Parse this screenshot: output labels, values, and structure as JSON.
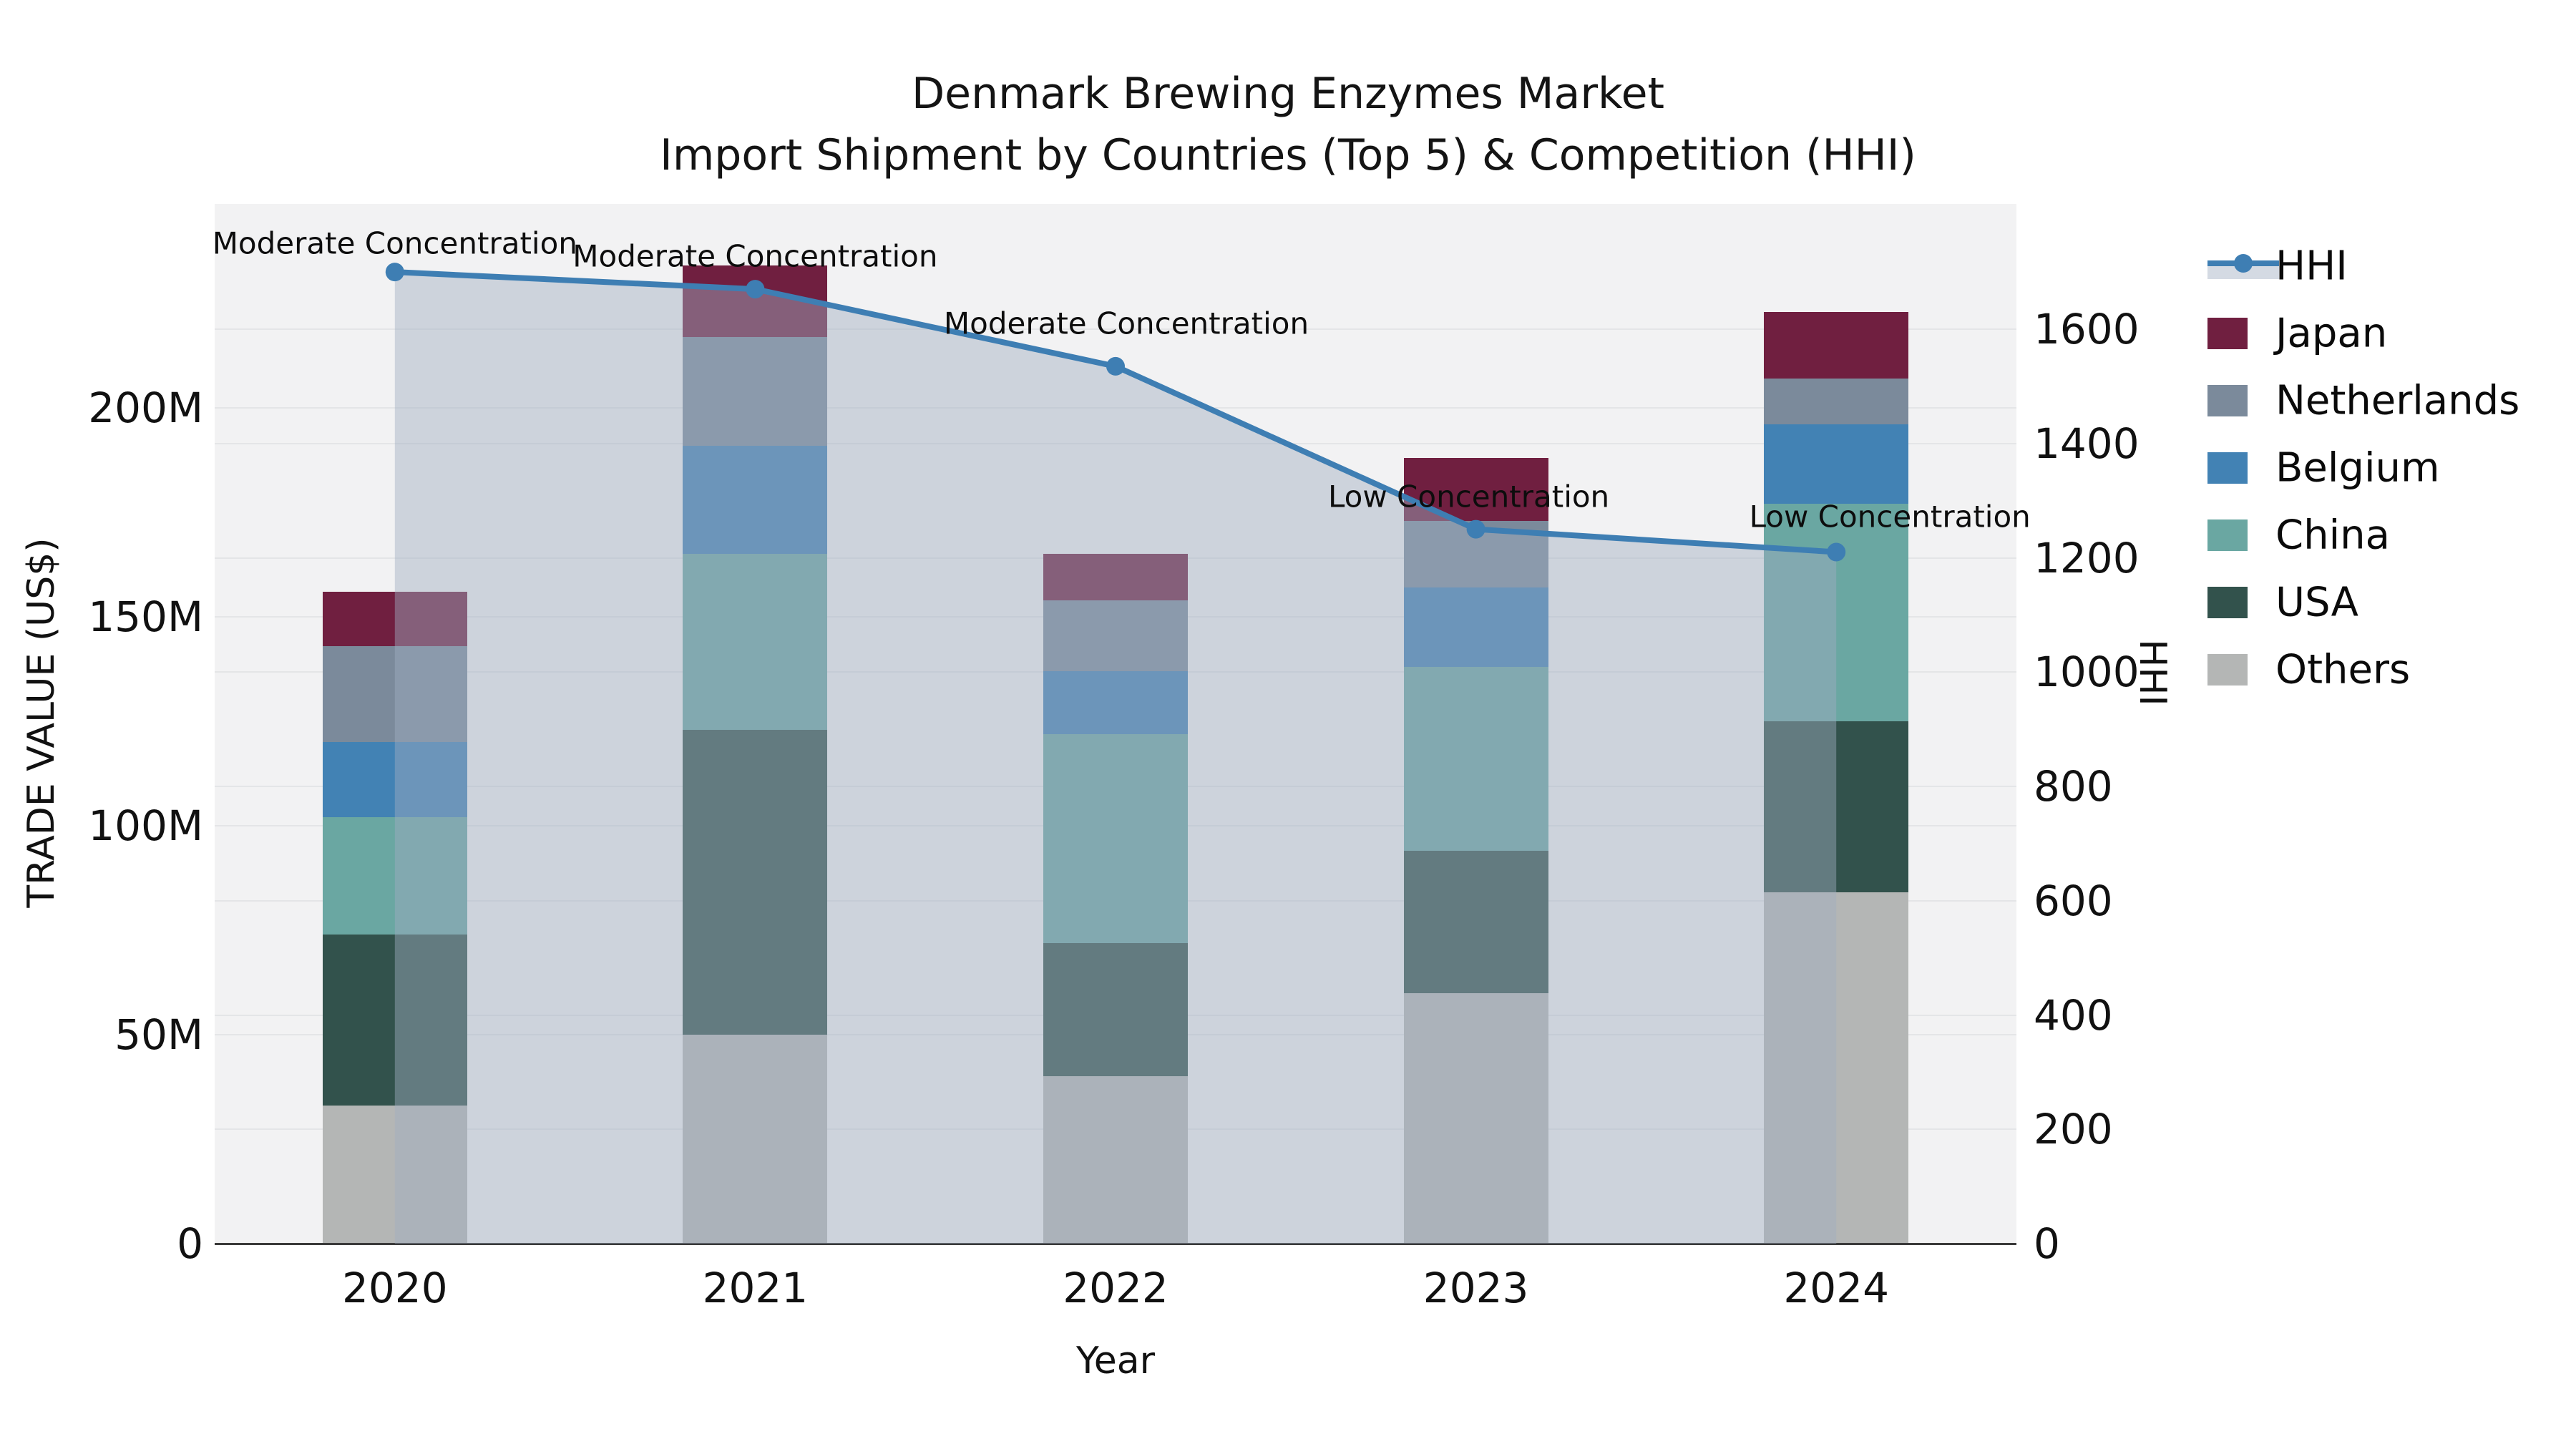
{
  "title": {
    "line1": "Denmark Brewing Enzymes Market",
    "line2": "Import Shipment by Countries (Top 5) & Competition (HHI)"
  },
  "axes": {
    "left_label": "TRADE VALUE (US$)",
    "right_label": "HHI",
    "x_label": "Year",
    "left_ticks": [
      {
        "label": "0",
        "value": 0
      },
      {
        "label": "50M",
        "value": 50
      },
      {
        "label": "100M",
        "value": 100
      },
      {
        "label": "150M",
        "value": 150
      },
      {
        "label": "200M",
        "value": 200
      }
    ],
    "right_ticks": [
      {
        "label": "0",
        "value": 0
      },
      {
        "label": "200",
        "value": 200
      },
      {
        "label": "400",
        "value": 400
      },
      {
        "label": "600",
        "value": 600
      },
      {
        "label": "800",
        "value": 800
      },
      {
        "label": "1000",
        "value": 1000
      },
      {
        "label": "1200",
        "value": 1200
      },
      {
        "label": "1400",
        "value": 1400
      },
      {
        "label": "1600",
        "value": 1600
      }
    ]
  },
  "legend": {
    "items": [
      {
        "label": "HHI",
        "type": "line",
        "color": "#3e7eb3"
      },
      {
        "label": "Japan",
        "type": "swatch",
        "color": "#701f40"
      },
      {
        "label": "Netherlands",
        "type": "swatch",
        "color": "#7b8a9b"
      },
      {
        "label": "Belgium",
        "type": "swatch",
        "color": "#4282b4"
      },
      {
        "label": "China",
        "type": "swatch",
        "color": "#6aa7a2"
      },
      {
        "label": "USA",
        "type": "swatch",
        "color": "#32524c"
      },
      {
        "label": "Others",
        "type": "swatch",
        "color": "#b4b6b5"
      }
    ]
  },
  "chart_data": {
    "type": "combo_stacked_bar_line",
    "title": "Denmark Brewing Enzymes Market — Import Shipment by Countries (Top 5) & Competition (HHI)",
    "categories": [
      "2020",
      "2021",
      "2022",
      "2023",
      "2024"
    ],
    "unit": "Trade value, millions US$",
    "stack_order_bottom_to_top": [
      "Others",
      "USA",
      "China",
      "Belgium",
      "Netherlands",
      "Japan"
    ],
    "series": [
      {
        "name": "Others",
        "color": "#b4b6b5",
        "values": [
          33,
          50,
          40,
          60,
          84
        ]
      },
      {
        "name": "USA",
        "color": "#32524c",
        "values": [
          41,
          73,
          32,
          34,
          41
        ]
      },
      {
        "name": "China",
        "color": "#6aa7a2",
        "values": [
          28,
          42,
          50,
          44,
          52
        ]
      },
      {
        "name": "Belgium",
        "color": "#4282b4",
        "values": [
          18,
          26,
          15,
          19,
          19
        ]
      },
      {
        "name": "Netherlands",
        "color": "#7b8a9b",
        "values": [
          23,
          26,
          17,
          16,
          11
        ]
      },
      {
        "name": "Japan",
        "color": "#701f40",
        "values": [
          13,
          17,
          11,
          15,
          16
        ]
      }
    ],
    "bar_totals": [
      156,
      234,
      165,
      188,
      223
    ],
    "hhi": {
      "name": "HHI",
      "values": [
        1700,
        1670,
        1535,
        1250,
        1210
      ],
      "line_color": "#3e7eb3",
      "area_fill": "rgba(160,172,192,0.45)"
    },
    "annotations": [
      {
        "year": "2020",
        "text": "Moderate Concentration"
      },
      {
        "year": "2021",
        "text": "Moderate Concentration"
      },
      {
        "year": "2022",
        "text": "Moderate Concentration"
      },
      {
        "year": "2023",
        "text": "Low Concentration"
      },
      {
        "year": "2024",
        "text": "Low Concentration"
      }
    ],
    "ylabel": "TRADE VALUE (US$)",
    "y2label": "HHI",
    "xlabel": "Year",
    "ylim_left": [
      0,
      248
    ],
    "ylim_right": [
      0,
      1818
    ],
    "grid": true,
    "legend_position": "right",
    "plot_background": "#f2f2f3"
  }
}
